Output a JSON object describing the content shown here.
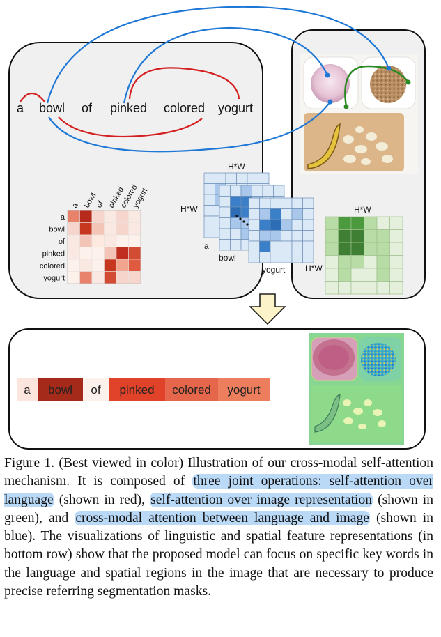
{
  "sentence": [
    "a",
    "bowl",
    "of",
    "pinked",
    "colored",
    "yogurt"
  ],
  "lang_matrix": {
    "row_labels": [
      "a",
      "bowl",
      "of",
      "pinked",
      "colored",
      "yogurt"
    ],
    "col_labels": [
      "a",
      "bowl",
      "of",
      "pinked",
      "colored",
      "yogurt"
    ],
    "cells": [
      [
        "#e8826a",
        "#b62a1c",
        "#f6d6cc",
        "#fae9e3",
        "#f6d6cc",
        "#fae9e3"
      ],
      [
        "#f6d6cc",
        "#c7361f",
        "#f3c5b7",
        "#fae9e3",
        "#f6d6cc",
        "#fae9e3"
      ],
      [
        "#fae9e3",
        "#f3c5b7",
        "#fde9e0",
        "#fae9e3",
        "#fdf1ec",
        "#fdf1ec"
      ],
      [
        "#fae9e3",
        "#fdf1ec",
        "#fdf1ec",
        "#f3c5b7",
        "#bf2e1e",
        "#d24b33"
      ],
      [
        "#fdf1ec",
        "#fae9e3",
        "#fdf1ec",
        "#c7361f",
        "#f2a58e",
        "#e05a40"
      ],
      [
        "#fdf1ec",
        "#e8826a",
        "#fae9e3",
        "#d24b33",
        "#f6d6cc",
        "#f6d6cc"
      ]
    ]
  },
  "cross_modal": {
    "size_label": "H*W",
    "word_labels": [
      "a",
      "bowl",
      "yogurt"
    ]
  },
  "image_attention": {
    "size_label": "H*W"
  },
  "attended_words": [
    {
      "word": "a",
      "color": "#fbe5dc",
      "text_color": "#222222"
    },
    {
      "word": "bowl",
      "color": "#a52a1a",
      "text_color": "#222222"
    },
    {
      "word": "of",
      "color": "#fdf1ec",
      "text_color": "#222222"
    },
    {
      "word": "pinked",
      "color": "#e0422a",
      "text_color": "#222222"
    },
    {
      "word": "colored",
      "color": "#e5664a",
      "text_color": "#222222"
    },
    {
      "word": "yogurt",
      "color": "#ec7e5e",
      "text_color": "#222222"
    }
  ],
  "caption": {
    "part1": "Figure 1. (Best viewed in color) Illustration of our cross-modal self-attention mechanism. It is composed of ",
    "hl1": "three joint operations: self-attention over language",
    "part2": " (shown in red), ",
    "hl2": "self-attention over im­age representation",
    "part3": " (shown in green), and ",
    "hl3": "cross-modal attention be­tween language and image",
    "part4": " (shown in blue). The visualizations of linguistic and spatial feature representations (in bottom row) show that the proposed model can focus on specific key words in the language and spatial regions in the image that are necessary to produce precise referring segmentation masks."
  },
  "colors": {
    "red_arc": "#d42020",
    "blue_arc": "#1f78d6",
    "green_arc": "#2a8a24"
  }
}
